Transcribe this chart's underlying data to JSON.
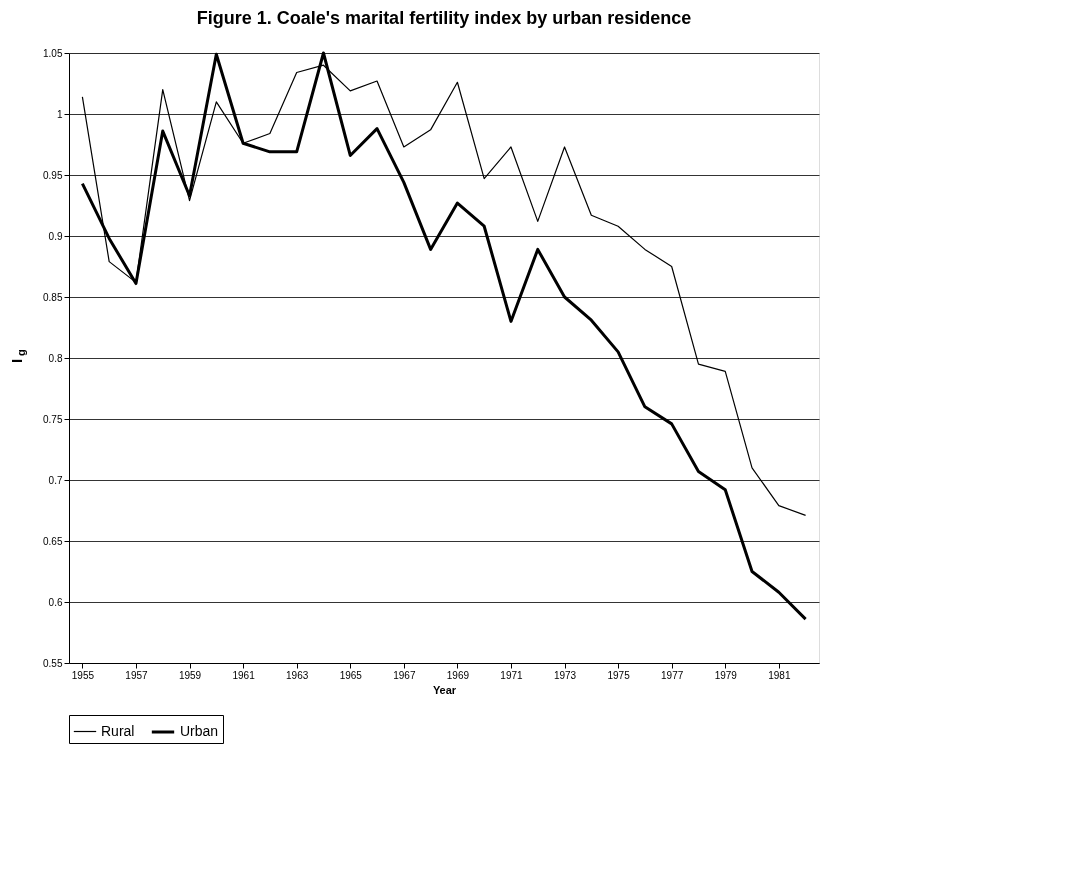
{
  "chart_data": {
    "type": "line",
    "title": "Figure 1. Coale's marital fertility index by urban residence",
    "xlabel": "Year",
    "ylabel": "I$_{g}$",
    "x": [
      1955,
      1956,
      1957,
      1958,
      1959,
      1960,
      1961,
      1962,
      1963,
      1964,
      1965,
      1966,
      1967,
      1968,
      1969,
      1970,
      1971,
      1972,
      1973,
      1974,
      1975,
      1976,
      1977,
      1978,
      1979,
      1980,
      1981,
      1982
    ],
    "series": [
      {
        "name": "Rural",
        "color": "#000000",
        "values": [
          1.014,
          0.879,
          0.862,
          1.02,
          0.929,
          1.01,
          0.976,
          0.984,
          1.034,
          1.04,
          1.019,
          1.027,
          0.973,
          0.987,
          1.026,
          0.947,
          0.973,
          0.912,
          0.973,
          0.917,
          0.908,
          0.889,
          0.875,
          0.795,
          0.789,
          0.71,
          0.679,
          0.671
        ]
      },
      {
        "name": "Urban",
        "color": "#000000",
        "values": [
          0.943,
          0.898,
          0.861,
          0.986,
          0.933,
          1.049,
          0.976,
          0.969,
          0.969,
          1.05,
          0.966,
          0.988,
          0.944,
          0.889,
          0.927,
          0.908,
          0.83,
          0.889,
          0.85,
          0.831,
          0.805,
          0.76,
          0.746,
          0.707,
          0.692,
          0.625,
          0.608,
          0.586
        ]
      }
    ],
    "xlim": [
      1954.5,
      1982.5
    ],
    "xticks": [
      1955,
      1957,
      1959,
      1961,
      1963,
      1965,
      1967,
      1969,
      1971,
      1973,
      1975,
      1977,
      1979,
      1981
    ],
    "ylim": [
      0.55,
      1.05
    ],
    "yticks": [
      0.55,
      {
        "value": 0.6,
        "label": "0.6"
      },
      0.65,
      {
        "value": 0.7,
        "label": "0.7"
      },
      0.75,
      {
        "value": 0.8,
        "label": "0.8"
      },
      0.85,
      {
        "value": 0.9,
        "label": "0.9"
      },
      0.95,
      {
        "value": 1,
        "label": "1"
      },
      1.05
    ],
    "grid": "y",
    "legend": "bottom",
    "marker": "none",
    "line_style": "solid"
  }
}
